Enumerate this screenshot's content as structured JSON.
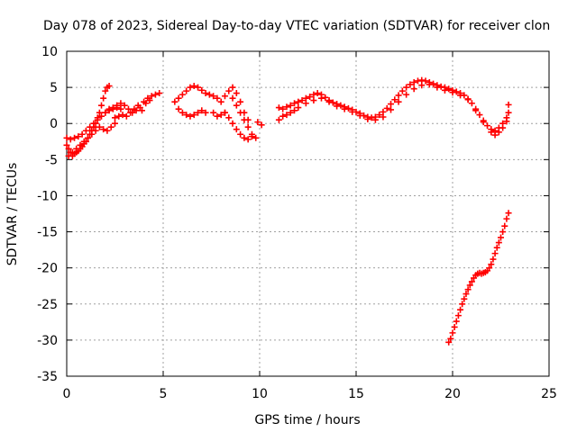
{
  "chart_data": {
    "type": "scatter",
    "title": "Day 078 of 2023, Sidereal Day-to-day VTEC variation (SDTVAR) for receiver clon",
    "xlabel": "GPS time / hours",
    "ylabel": "SDTVAR / TECUs",
    "xlim": [
      0,
      25
    ],
    "ylim": [
      -35,
      10
    ],
    "xticks": [
      0,
      5,
      10,
      15,
      20,
      25
    ],
    "yticks": [
      10,
      5,
      0,
      -5,
      -10,
      -15,
      -20,
      -25,
      -30,
      -35
    ],
    "xtick_labels": [
      "0",
      "5",
      "10",
      "15",
      "20",
      "25"
    ],
    "ytick_labels": [
      "10",
      "5",
      "0",
      "-5",
      "-10",
      "-15",
      "-20",
      "-25",
      "-30",
      "-35"
    ],
    "grid": true,
    "marker": "+",
    "color": "#ff0000",
    "series": [
      {
        "name": "main",
        "x": [
          0.0,
          0.1,
          0.2,
          0.3,
          0.4,
          0.5,
          0.6,
          0.7,
          0.8,
          0.9,
          1.0,
          1.1,
          1.2,
          1.3,
          1.4,
          1.5,
          1.6,
          1.7,
          1.8,
          1.9,
          2.0,
          2.1,
          2.2,
          0.0,
          0.2,
          0.4,
          0.6,
          0.8,
          1.0,
          1.2,
          1.4,
          1.6,
          1.8,
          2.0,
          2.2,
          2.4,
          2.6,
          2.8,
          0.1,
          0.3,
          0.5,
          0.7,
          0.9,
          1.1,
          1.3,
          1.5,
          1.7,
          1.9,
          2.1,
          2.3,
          2.5,
          2.0,
          2.2,
          2.4,
          2.6,
          2.8,
          3.0,
          3.2,
          3.4,
          3.6,
          3.8,
          4.0,
          4.2,
          4.4,
          4.6,
          4.8,
          2.5,
          2.7,
          2.9,
          3.1,
          3.3,
          3.5,
          3.7,
          3.9,
          4.1,
          4.3,
          5.6,
          5.8,
          6.0,
          6.2,
          6.4,
          6.6,
          6.8,
          7.0,
          7.2,
          7.4,
          7.6,
          7.8,
          8.0,
          8.2,
          8.4,
          8.6,
          8.8,
          9.0,
          9.2,
          9.4,
          5.8,
          6.0,
          6.2,
          6.4,
          6.6,
          6.8,
          7.0,
          7.2,
          8.2,
          8.4,
          8.6,
          8.8,
          9.0,
          9.2,
          9.4,
          9.6,
          8.6,
          8.8,
          9.0,
          9.2,
          9.4,
          9.6,
          9.8,
          7.6,
          7.8,
          8.0,
          8.2,
          9.9,
          10.1
        ],
        "y": [
          -3.0,
          -3.5,
          -4.0,
          -4.5,
          -4.2,
          -4.0,
          -3.8,
          -3.5,
          -3.2,
          -2.8,
          -2.5,
          -2.0,
          -1.5,
          -1.0,
          -0.5,
          0.0,
          0.8,
          1.5,
          2.5,
          3.5,
          4.5,
          5.0,
          5.2,
          -2.0,
          -2.2,
          -2.0,
          -1.8,
          -1.5,
          -1.0,
          -0.5,
          0.0,
          0.5,
          1.0,
          1.5,
          1.8,
          2.0,
          2.2,
          2.0,
          -4.5,
          -4.0,
          -3.5,
          -3.0,
          -2.5,
          -2.0,
          -1.5,
          -1.0,
          -0.5,
          -0.8,
          -1.0,
          -0.5,
          0.0,
          1.5,
          2.0,
          2.2,
          2.5,
          2.8,
          2.5,
          2.0,
          1.5,
          1.8,
          2.2,
          3.0,
          3.5,
          3.8,
          4.0,
          4.2,
          0.8,
          1.0,
          1.2,
          1.0,
          1.5,
          2.0,
          2.5,
          1.8,
          2.8,
          3.2,
          3.0,
          3.5,
          4.0,
          4.5,
          5.0,
          5.2,
          5.0,
          4.6,
          4.2,
          4.0,
          3.8,
          3.5,
          3.0,
          3.8,
          4.5,
          5.0,
          4.2,
          3.0,
          1.5,
          0.5,
          2.0,
          1.5,
          1.2,
          1.0,
          1.2,
          1.5,
          1.8,
          1.5,
          1.5,
          0.8,
          0.0,
          -0.8,
          -1.5,
          -2.0,
          -2.2,
          -1.8,
          3.5,
          2.5,
          1.5,
          0.5,
          -0.5,
          -1.5,
          -2.0,
          1.5,
          1.0,
          1.2,
          1.5,
          0.2,
          -0.2
        ]
      },
      {
        "name": "band",
        "x": [
          11.0,
          11.2,
          11.4,
          11.6,
          11.8,
          12.0,
          12.2,
          12.4,
          12.6,
          12.8,
          13.0,
          13.2,
          13.4,
          13.6,
          13.8,
          14.0,
          14.2,
          14.4,
          14.6,
          14.8,
          15.0,
          15.2,
          15.4,
          15.6,
          15.8,
          16.0,
          16.2,
          16.4,
          16.6,
          16.8,
          17.0,
          17.2,
          17.4,
          17.6,
          17.8,
          18.0,
          18.2,
          18.4,
          18.6,
          18.8,
          19.0,
          19.2,
          19.4,
          19.6,
          19.8,
          20.0,
          20.2,
          20.4,
          20.6,
          20.8,
          21.0,
          21.2,
          21.4,
          21.6,
          21.8,
          22.0,
          22.2,
          22.4,
          22.6,
          22.8,
          22.9
        ],
        "y": [
          2.2,
          2.0,
          2.3,
          2.5,
          2.8,
          3.0,
          3.2,
          3.5,
          3.7,
          4.0,
          4.2,
          4.0,
          3.6,
          3.2,
          2.9,
          2.7,
          2.5,
          2.3,
          2.1,
          1.9,
          1.6,
          1.4,
          1.1,
          0.9,
          0.8,
          0.9,
          1.2,
          1.6,
          2.1,
          2.7,
          3.3,
          3.9,
          4.5,
          5.0,
          5.4,
          5.7,
          5.9,
          6.0,
          5.9,
          5.7,
          5.5,
          5.3,
          5.1,
          5.0,
          4.8,
          4.6,
          4.4,
          4.2,
          3.9,
          3.4,
          2.8,
          2.0,
          1.2,
          0.4,
          -0.3,
          -0.8,
          -1.0,
          -0.6,
          0.0,
          0.8,
          1.5
        ]
      },
      {
        "name": "band-lower",
        "x": [
          11.0,
          11.2,
          11.4,
          11.6,
          11.8,
          12.0,
          12.4,
          12.8,
          13.2,
          13.6,
          14.0,
          14.4,
          14.8,
          15.2,
          15.6,
          16.0,
          16.4,
          16.8,
          17.2,
          17.6,
          18.0,
          18.4,
          18.8,
          19.2,
          19.6,
          20.0,
          20.4,
          20.8,
          21.2,
          21.6,
          22.0,
          22.2,
          22.4,
          22.6,
          22.8,
          22.9
        ],
        "y": [
          0.5,
          1.0,
          1.2,
          1.5,
          1.8,
          2.2,
          2.8,
          3.2,
          3.5,
          3.0,
          2.4,
          2.0,
          1.6,
          1.1,
          0.6,
          0.5,
          0.9,
          1.9,
          3.0,
          4.0,
          4.8,
          5.3,
          5.4,
          5.0,
          4.6,
          4.3,
          3.9,
          3.3,
          1.8,
          0.2,
          -1.2,
          -1.6,
          -1.2,
          -0.6,
          0.3,
          2.6
        ]
      },
      {
        "name": "descent",
        "x": [
          19.8,
          19.9,
          20.0,
          20.1,
          20.2,
          20.3,
          20.4,
          20.5,
          20.6,
          20.7,
          20.8,
          20.9,
          21.0,
          21.1,
          21.2,
          21.3,
          21.4,
          21.5,
          21.6,
          21.7,
          21.8,
          21.9,
          22.0,
          22.1,
          22.2,
          22.3,
          22.4,
          22.5,
          22.6,
          22.7,
          22.8,
          22.9
        ],
        "y": [
          -30.3,
          -29.8,
          -29.0,
          -28.2,
          -27.4,
          -26.6,
          -25.8,
          -25.0,
          -24.3,
          -23.6,
          -23.0,
          -22.4,
          -21.9,
          -21.4,
          -21.0,
          -20.8,
          -20.7,
          -20.8,
          -20.7,
          -20.6,
          -20.4,
          -20.0,
          -19.5,
          -18.8,
          -18.0,
          -17.2,
          -16.5,
          -15.8,
          -15.0,
          -14.2,
          -13.2,
          -12.4
        ]
      }
    ]
  }
}
